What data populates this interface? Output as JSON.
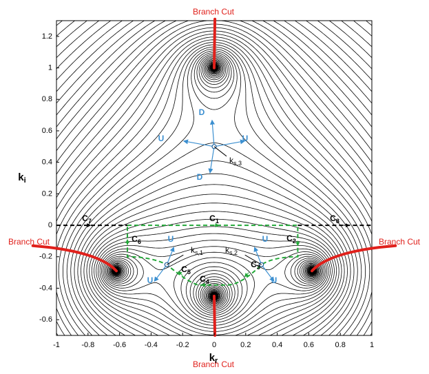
{
  "chart_data": {
    "type": "contour",
    "xlim": [
      -1,
      1
    ],
    "ylim": [
      -0.7,
      1.3
    ],
    "xticks": [
      -1,
      -0.8,
      -0.6,
      -0.4,
      -0.2,
      0,
      0.2,
      0.4,
      0.6,
      0.8,
      1
    ],
    "yticks": [
      -0.6,
      -0.4,
      -0.2,
      0,
      0.2,
      0.4,
      0.6,
      0.8,
      1,
      1.2
    ],
    "xlabel": "k",
    "xlabel_sub": "r",
    "ylabel": "k",
    "ylabel_sub": "i",
    "annotations": [
      {
        "text": "Branch Cut",
        "color": "#e0201b"
      },
      {
        "text": "Branch Cut",
        "color": "#e0201b"
      },
      {
        "text": "Branch Cut",
        "color": "#e0201b"
      },
      {
        "text": "Branch Cut",
        "color": "#e0201b"
      },
      {
        "text": "D",
        "color": "#3b8fd0"
      },
      {
        "text": "D",
        "color": "#3b8fd0"
      },
      {
        "text": "U",
        "color": "#3b8fd0"
      },
      {
        "text": "U",
        "color": "#3b8fd0"
      },
      {
        "text": "k",
        "sub": "s,3",
        "color": "#000000"
      },
      {
        "text": "U",
        "color": "#3b8fd0"
      },
      {
        "text": "U",
        "color": "#3b8fd0"
      },
      {
        "text": "k",
        "sub": "s,1",
        "color": "#000000"
      },
      {
        "text": "k",
        "sub": "s,2",
        "color": "#000000"
      },
      {
        "text": "U",
        "color": "#3b8fd0"
      },
      {
        "text": "U",
        "color": "#3b8fd0"
      },
      {
        "text": "C",
        "sub": "1",
        "color": "#000000"
      },
      {
        "text": "C",
        "sub": "2",
        "color": "#000000"
      },
      {
        "text": "C",
        "sub": "3",
        "color": "#000000"
      },
      {
        "text": "C",
        "sub": "4",
        "color": "#000000"
      },
      {
        "text": "C",
        "sub": "5",
        "color": "#000000"
      },
      {
        "text": "C",
        "sub": "6",
        "color": "#000000"
      },
      {
        "text": "C",
        "sub": "7",
        "color": "#000000"
      },
      {
        "text": "C",
        "sub": "8",
        "color": "#000000"
      }
    ]
  }
}
